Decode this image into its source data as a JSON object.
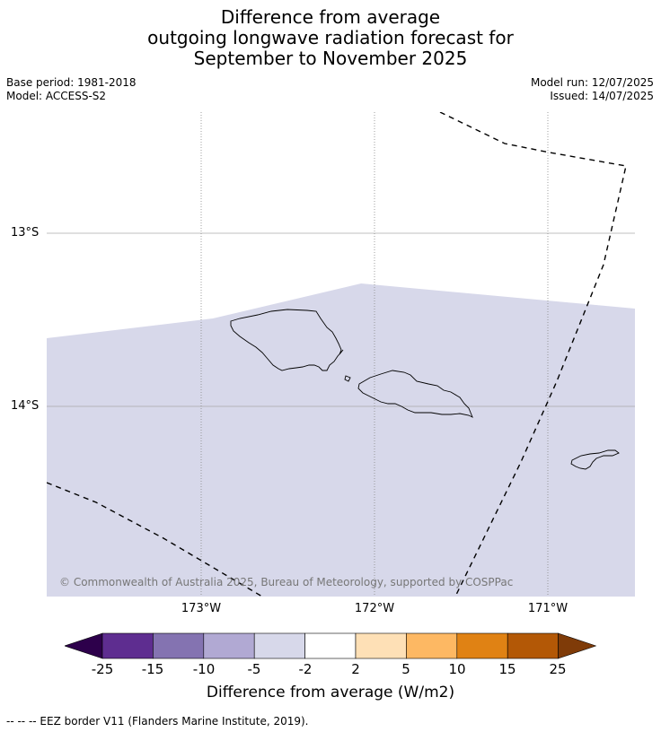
{
  "title": {
    "line1": "Difference from average",
    "line2": "outgoing longwave radiation forecast for",
    "line3": "September to November 2025"
  },
  "meta": {
    "base_period": "Base period: 1981-2018",
    "model": "Model: ACCESS-S2",
    "model_run": "Model run: 12/07/2025",
    "issued": "Issued: 14/07/2025"
  },
  "map": {
    "lat_labels": [
      "13°S",
      "14°S"
    ],
    "lon_labels": [
      "173°W",
      "172°W",
      "171°W"
    ],
    "forecast_fill_color": "#d7d8ea",
    "forecast_category": "-5 to -2",
    "copyright": "© Commonwealth of Australia 2025, Bureau of Meteorology, supported by COSPPac"
  },
  "colorbar": {
    "ticks": [
      "-25",
      "-15",
      "-10",
      "-5",
      "-2",
      "2",
      "5",
      "10",
      "15",
      "25"
    ],
    "colors": [
      "#2d004b",
      "#5e2d90",
      "#8473b1",
      "#b1a9d3",
      "#d7d8ea",
      "#ffffff",
      "#fee0b6",
      "#fdb863",
      "#e08214",
      "#b35806",
      "#7f3b08"
    ],
    "label": "Difference from average (W/m2)"
  },
  "legend": {
    "eez_note": "--  --  -- EEZ border V11 (Flanders Marine Institute, 2019)."
  }
}
